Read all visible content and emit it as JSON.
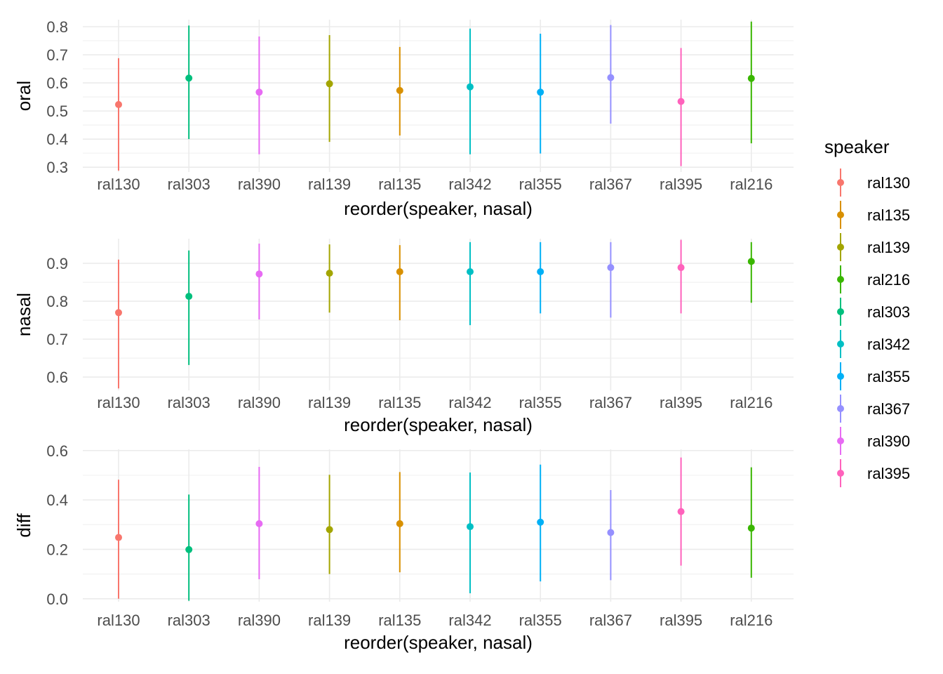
{
  "chart_data": [
    {
      "type": "pointrange",
      "ylabel": "oral",
      "xlabel": "reorder(speaker, nasal)",
      "categories": [
        "ral130",
        "ral303",
        "ral390",
        "ral139",
        "ral135",
        "ral342",
        "ral355",
        "ral367",
        "ral395",
        "ral216"
      ],
      "values": [
        0.523,
        0.617,
        0.567,
        0.597,
        0.573,
        0.586,
        0.567,
        0.619,
        0.534,
        0.616
      ],
      "lower": [
        0.288,
        0.4,
        0.346,
        0.39,
        0.413,
        0.346,
        0.349,
        0.455,
        0.304,
        0.385
      ],
      "upper": [
        0.688,
        0.804,
        0.765,
        0.77,
        0.728,
        0.793,
        0.775,
        0.806,
        0.724,
        0.818
      ],
      "ylim": [
        0.283,
        0.825
      ],
      "yticks": [
        "0.3",
        "0.4",
        "0.5",
        "0.6",
        "0.7",
        "0.8"
      ],
      "grid": true
    },
    {
      "type": "pointrange",
      "ylabel": "nasal",
      "xlabel": "reorder(speaker, nasal)",
      "categories": [
        "ral130",
        "ral303",
        "ral390",
        "ral139",
        "ral135",
        "ral342",
        "ral355",
        "ral367",
        "ral395",
        "ral216"
      ],
      "values": [
        0.77,
        0.813,
        0.872,
        0.874,
        0.878,
        0.878,
        0.878,
        0.889,
        0.889,
        0.905
      ],
      "lower": [
        0.57,
        0.632,
        0.752,
        0.77,
        0.75,
        0.737,
        0.768,
        0.757,
        0.768,
        0.796
      ],
      "upper": [
        0.91,
        0.934,
        0.952,
        0.95,
        0.948,
        0.956,
        0.956,
        0.956,
        0.962,
        0.956
      ],
      "ylim": [
        0.565,
        0.965
      ],
      "yticks": [
        "0.6",
        "0.7",
        "0.8",
        "0.9"
      ],
      "grid": true
    },
    {
      "type": "pointrange",
      "ylabel": "diff",
      "xlabel": "reorder(speaker, nasal)",
      "categories": [
        "ral130",
        "ral303",
        "ral390",
        "ral139",
        "ral135",
        "ral342",
        "ral355",
        "ral367",
        "ral395",
        "ral216"
      ],
      "values": [
        0.248,
        0.199,
        0.304,
        0.28,
        0.304,
        0.292,
        0.31,
        0.268,
        0.353,
        0.286
      ],
      "lower": [
        0.0,
        -0.008,
        0.079,
        0.1,
        0.107,
        0.022,
        0.07,
        0.075,
        0.134,
        0.085
      ],
      "upper": [
        0.482,
        0.422,
        0.534,
        0.502,
        0.513,
        0.511,
        0.543,
        0.44,
        0.572,
        0.532
      ],
      "ylim": [
        -0.012,
        0.605
      ],
      "yticks": [
        "0.0",
        "0.2",
        "0.4",
        "0.6"
      ],
      "grid": true
    }
  ],
  "legend": {
    "title": "speaker",
    "placement": "right",
    "items": [
      "ral130",
      "ral135",
      "ral139",
      "ral216",
      "ral303",
      "ral342",
      "ral355",
      "ral367",
      "ral390",
      "ral395"
    ]
  },
  "colors": {
    "ral130": "#F8766D",
    "ral135": "#D89000",
    "ral139": "#A3A500",
    "ral216": "#39B600",
    "ral303": "#00BF7D",
    "ral342": "#00BFC4",
    "ral355": "#00B0F6",
    "ral367": "#9590FF",
    "ral390": "#E76BF3",
    "ral395": "#FF62BC"
  }
}
